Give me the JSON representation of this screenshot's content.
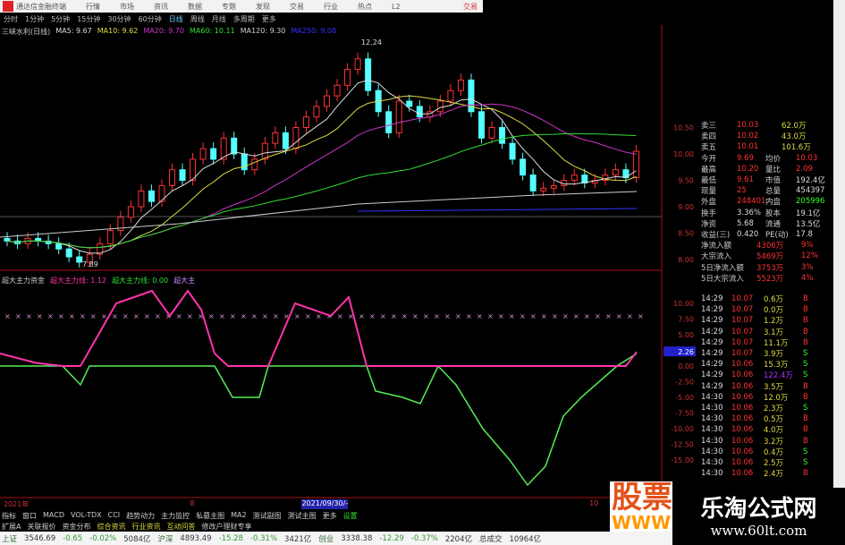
{
  "window": {
    "title": "通达信金融终端",
    "menu": [
      "行情",
      "市场",
      "资讯",
      "数据",
      "专题",
      "发现",
      "交易",
      "行业",
      "热点",
      "L2"
    ],
    "trade": "交易"
  },
  "periods": {
    "items": [
      "分时",
      "1分钟",
      "5分钟",
      "15分钟",
      "30分钟",
      "60分钟",
      "日线",
      "周线",
      "月线",
      "多周期",
      "更多"
    ],
    "active": "日线"
  },
  "legend": [
    {
      "t": "三峡水利(日线)",
      "c": "#ccc"
    },
    {
      "t": "MA5: 9.67",
      "c": "#ddd"
    },
    {
      "t": "MA10: 9.62",
      "c": "#dd4"
    },
    {
      "t": "MA20: 9.70",
      "c": "#c3c"
    },
    {
      "t": "MA60: 10.11",
      "c": "#3d3"
    },
    {
      "t": "MA120: 9.30",
      "c": "#ccc"
    },
    {
      "t": "MA250: 9.08",
      "c": "#33f"
    }
  ],
  "main_chart": {
    "high_label": "12.24",
    "low_label": "7.89",
    "y_ticks": [
      "10.50",
      "10.00",
      "9.50",
      "9.00",
      "8.50",
      "8.00"
    ],
    "closes": [
      8.35,
      8.3,
      8.4,
      8.35,
      8.3,
      8.2,
      8.05,
      7.95,
      8.1,
      8.3,
      8.55,
      8.8,
      9.0,
      9.3,
      9.1,
      9.4,
      9.7,
      9.5,
      9.9,
      10.1,
      9.9,
      10.3,
      10.0,
      9.7,
      9.9,
      10.2,
      10.4,
      10.1,
      10.5,
      10.7,
      10.9,
      11.1,
      11.3,
      11.6,
      11.8,
      11.2,
      10.8,
      10.4,
      11.0,
      10.9,
      10.7,
      10.8,
      11.0,
      11.2,
      11.4,
      10.8,
      10.3,
      10.5,
      10.2,
      9.9,
      9.6,
      9.3,
      9.35,
      9.4,
      9.5,
      9.6,
      9.45,
      9.5,
      9.6,
      9.7,
      9.55,
      10.05
    ],
    "up_color": "#ff3333",
    "down_color": "#54ffff"
  },
  "indicator": {
    "legend": [
      "超大主力资金",
      "超大主力线: 1.12",
      "超大主力线: 0.00",
      "超大主"
    ],
    "y_ticks": [
      "10.00",
      "7.50",
      "5.00",
      "2.26",
      "0.00",
      "-2.50",
      "-5.00",
      "-7.50",
      "-10.00",
      "-12.50",
      "-15.00"
    ],
    "current": "2.26",
    "pink": [
      [
        0,
        2
      ],
      [
        40,
        0.5
      ],
      [
        70,
        0
      ],
      [
        90,
        0
      ],
      [
        130,
        10
      ],
      [
        170,
        12
      ],
      [
        190,
        8
      ],
      [
        210,
        12
      ],
      [
        225,
        9
      ],
      [
        240,
        2
      ],
      [
        255,
        0
      ],
      [
        300,
        0
      ],
      [
        330,
        10
      ],
      [
        370,
        8
      ],
      [
        390,
        11
      ],
      [
        410,
        0
      ],
      [
        700,
        0
      ],
      [
        712,
        2.26
      ]
    ],
    "green": [
      [
        0,
        0
      ],
      [
        70,
        0
      ],
      [
        90,
        -3
      ],
      [
        100,
        0
      ],
      [
        240,
        0
      ],
      [
        260,
        -5
      ],
      [
        290,
        -5
      ],
      [
        300,
        0
      ],
      [
        410,
        0
      ],
      [
        420,
        -4
      ],
      [
        450,
        -5
      ],
      [
        470,
        -6
      ],
      [
        490,
        0
      ],
      [
        510,
        -3
      ],
      [
        540,
        -10
      ],
      [
        570,
        -15
      ],
      [
        590,
        -19
      ],
      [
        610,
        -16
      ],
      [
        630,
        -8
      ],
      [
        650,
        -5
      ],
      [
        690,
        0
      ],
      [
        712,
        2
      ]
    ]
  },
  "quote": {
    "asks": [
      [
        "卖三",
        "10.03",
        "62.0万"
      ],
      [
        "卖四",
        "10.02",
        "43.0万"
      ],
      [
        "卖五",
        "10.01",
        "101.6万"
      ]
    ],
    "stats": [
      [
        "今开",
        "9.69",
        "均价",
        "10.03"
      ],
      [
        "最高",
        "10.20",
        "量比",
        "2.09"
      ],
      [
        "最低",
        "9.61",
        "市值",
        "192.4亿"
      ],
      [
        "现量",
        "25",
        "总量",
        "454397"
      ],
      [
        "外盘",
        "248401",
        "内盘",
        "205996"
      ],
      [
        "换手",
        "3.36%",
        "股本",
        "19.1亿"
      ],
      [
        "净资",
        "5.68",
        "流通",
        "13.5亿"
      ],
      [
        "收益(三)",
        "0.420",
        "PE(动)",
        "17.8"
      ]
    ],
    "flows": [
      [
        "净流入额",
        "4306万",
        "9%"
      ],
      [
        "大宗流入",
        "5469万",
        "12%"
      ],
      [
        "5日净流入额",
        "3753万",
        "3%"
      ],
      [
        "5日大宗流入",
        "5523万",
        "4%"
      ]
    ]
  },
  "ticks": [
    [
      "14:29",
      "10.07",
      "0.6万",
      "B"
    ],
    [
      "14:29",
      "10.07",
      "0.0万",
      "B"
    ],
    [
      "14:29",
      "10.07",
      "1.2万",
      "B"
    ],
    [
      "14:29",
      "10.07",
      "3.1万",
      "B"
    ],
    [
      "14:29",
      "10.07",
      "11.1万",
      "B"
    ],
    [
      "14:29",
      "10.07",
      "3.9万",
      "S"
    ],
    [
      "14:29",
      "10.06",
      "15.3万",
      "S"
    ],
    [
      "14:29",
      "10.06",
      "122.4万",
      "S"
    ],
    [
      "14:29",
      "10.06",
      "3.5万",
      "B"
    ],
    [
      "14:30",
      "10.06",
      "12.0万",
      "B"
    ],
    [
      "14:30",
      "10.06",
      "2.3万",
      "S"
    ],
    [
      "14:30",
      "10.06",
      "0.5万",
      "B"
    ],
    [
      "14:30",
      "10.06",
      "4.0万",
      "B"
    ],
    [
      "14:30",
      "10.06",
      "3.2万",
      "B"
    ],
    [
      "14:30",
      "10.06",
      "0.4万",
      "S"
    ],
    [
      "14:30",
      "10.06",
      "2.5万",
      "S"
    ],
    [
      "14:30",
      "10.06",
      "2.4万",
      "B"
    ]
  ],
  "timeline": {
    "labels": [
      "2021年",
      "8",
      "2021/09/30/-",
      "10"
    ]
  },
  "tabs": [
    "指标",
    "窗口",
    "MACD",
    "VOL-TDX",
    "CCI",
    "趋势动力",
    "主力监控",
    "私募主图",
    "MA2",
    "测试副图",
    "测试主图",
    "更多",
    "设置"
  ],
  "tabs2": [
    "扩展A",
    "关联报价",
    "资金分布",
    "综合资讯",
    "行业资讯",
    "互动问答",
    "修改户理财专享"
  ],
  "status": {
    "items": [
      [
        "上证",
        "3546.69",
        "-0.65",
        "-0.02%",
        "5084亿"
      ],
      [
        "沪深",
        "4893.49",
        "-15.28",
        "-0.31%",
        "3421亿"
      ],
      [
        "创业",
        "3338.38",
        "-12.29",
        "-0.37%",
        "2204亿"
      ]
    ],
    "total_label": "总成交",
    "total": "10964亿"
  },
  "watermark": {
    "brand": "股票公式指标网",
    "url_partial": "WWW",
    "site": "乐淘公式网",
    "site_url": "www.60lt.com"
  }
}
